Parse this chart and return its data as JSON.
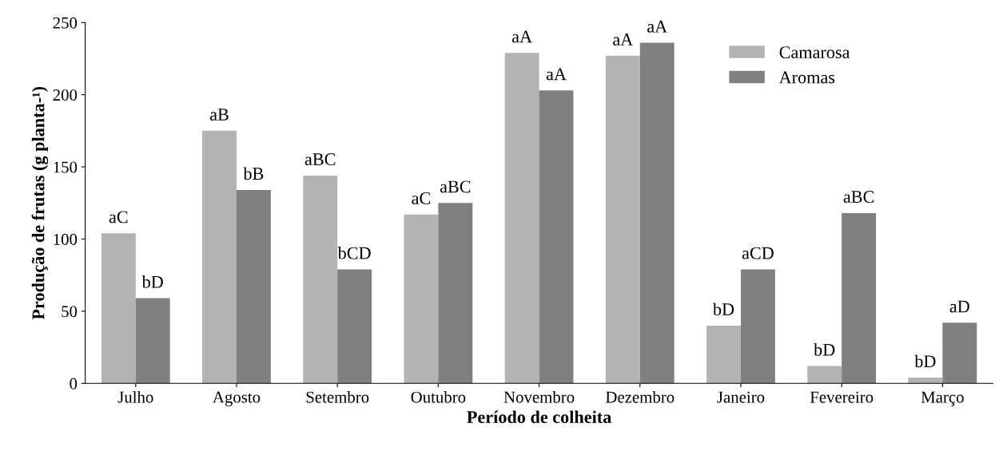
{
  "chart_data": {
    "type": "bar",
    "xlabel": "Período de colheita",
    "ylabel": "Produção de frutas (g planta-¹)",
    "categories": [
      "Julho",
      "Agosto",
      "Setembro",
      "Outubro",
      "Novembro",
      "Dezembro",
      "Janeiro",
      "Fevereiro",
      "Março"
    ],
    "series": [
      {
        "name": "Camarosa",
        "color": "#b3b3b3",
        "values": [
          104,
          175,
          144,
          117,
          229,
          227,
          40,
          12,
          4
        ],
        "value_labels": [
          "aC",
          "aB",
          "aBC",
          "aC",
          "aA",
          "aA",
          "bD",
          "bD",
          "bD"
        ]
      },
      {
        "name": "Aromas",
        "color": "#808080",
        "values": [
          59,
          134,
          79,
          125,
          203,
          236,
          79,
          118,
          42
        ],
        "value_labels": [
          "bD",
          "bB",
          "bCD",
          "aBC",
          "aA",
          "aA",
          "aCD",
          "aBC",
          "aD"
        ]
      }
    ],
    "ylim": [
      0,
      250
    ],
    "yticks": [
      0,
      50,
      100,
      150,
      200,
      250
    ],
    "grid": false,
    "legend": "top right"
  }
}
